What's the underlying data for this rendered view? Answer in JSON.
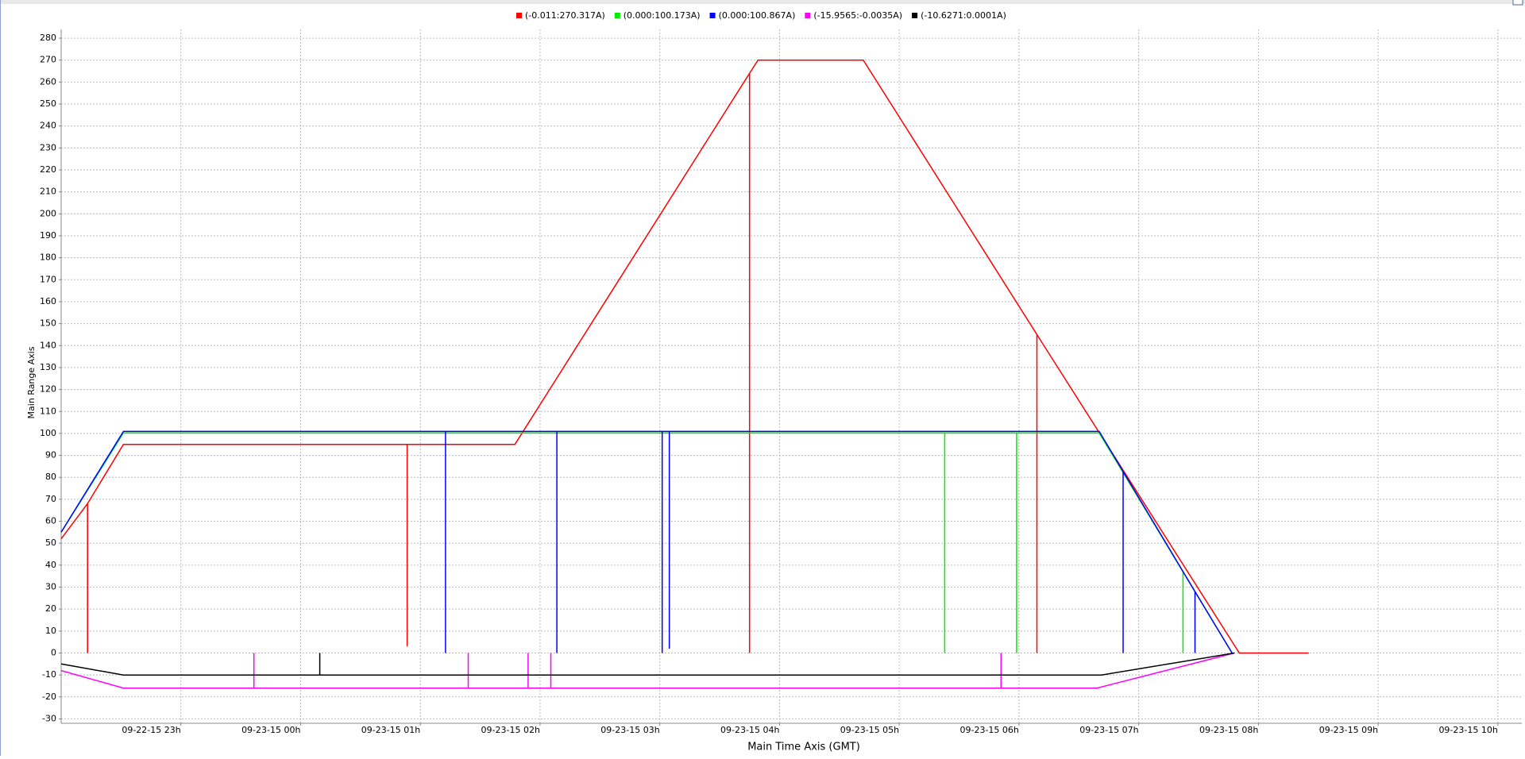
{
  "chart_data": {
    "type": "line",
    "y_label": "Main Range Axis",
    "x_label": "Main Time Axis (GMT)",
    "xlim": [
      22,
      34.2
    ],
    "xticks": [
      {
        "value": 23,
        "label": "09-22-15 23h"
      },
      {
        "value": 24,
        "label": "09-23-15 00h"
      },
      {
        "value": 25,
        "label": "09-23-15 01h"
      },
      {
        "value": 26,
        "label": "09-23-15 02h"
      },
      {
        "value": 27,
        "label": "09-23-15 03h"
      },
      {
        "value": 28,
        "label": "09-23-15 04h"
      },
      {
        "value": 29,
        "label": "09-23-15 05h"
      },
      {
        "value": 30,
        "label": "09-23-15 06h"
      },
      {
        "value": 31,
        "label": "09-23-15 07h"
      },
      {
        "value": 32,
        "label": "09-23-15 08h"
      },
      {
        "value": 33,
        "label": "09-23-15 09h"
      },
      {
        "value": 34,
        "label": "09-23-15 10h"
      }
    ],
    "ylim": [
      -32,
      284
    ],
    "yticks": [
      -30,
      -20,
      -10,
      0,
      10,
      20,
      30,
      40,
      50,
      60,
      70,
      80,
      90,
      100,
      110,
      120,
      130,
      140,
      150,
      160,
      170,
      180,
      190,
      200,
      210,
      220,
      230,
      240,
      250,
      260,
      270,
      280
    ],
    "grid": true,
    "legend": "top",
    "series": [
      {
        "name": "(-0.011:270.317A)",
        "color": "#ff0000",
        "x": [
          22.0,
          22.22,
          22.22,
          22.22,
          22.52,
          24.89,
          24.89,
          24.89,
          25.79,
          27.75,
          27.75,
          27.75,
          27.82,
          28.7,
          30.15,
          30.15,
          30.15,
          31.84,
          32.42
        ],
        "values": [
          52,
          68,
          0,
          68,
          95,
          95,
          3,
          95,
          95,
          264,
          0,
          264,
          270,
          270,
          145,
          0,
          145,
          0,
          0
        ]
      },
      {
        "name": "(0.000:100.173A)",
        "color": "#00ee00",
        "x": [
          22.0,
          22.52,
          29.38,
          29.38,
          29.38,
          29.98,
          29.98,
          29.98,
          30.67,
          31.37,
          31.37,
          31.37,
          31.78
        ],
        "values": [
          55,
          100.2,
          100.2,
          0,
          100.2,
          100.2,
          0,
          100.2,
          100.2,
          37,
          0,
          37,
          0
        ]
      },
      {
        "name": "(0.000:100.867A)",
        "color": "#0000ff",
        "x": [
          22.0,
          22.52,
          25.21,
          25.21,
          25.21,
          26.14,
          26.14,
          26.14,
          27.02,
          27.02,
          27.02,
          27.08,
          27.08,
          27.08,
          30.67,
          30.87,
          30.87,
          30.87,
          31.47,
          31.47,
          31.47,
          31.78
        ],
        "values": [
          55,
          100.9,
          100.9,
          0,
          100.9,
          100.9,
          0,
          100.9,
          100.9,
          0,
          100.9,
          100.9,
          2,
          100.9,
          100.9,
          82.7,
          0,
          82.7,
          28,
          0,
          28,
          0
        ]
      },
      {
        "name": "(-15.9565:-0.0035A)",
        "color": "#ff00ff",
        "x": [
          22.0,
          22.52,
          23.61,
          23.61,
          23.61,
          25.4,
          25.4,
          25.4,
          25.9,
          25.9,
          25.9,
          26.09,
          26.09,
          26.09,
          29.85,
          29.85,
          29.85,
          30.65,
          31.8
        ],
        "values": [
          -8,
          -16,
          -16,
          0,
          -16,
          -16,
          0,
          -16,
          -16,
          0,
          -16,
          -16,
          0,
          -16,
          -16,
          0,
          -16,
          -16,
          0
        ]
      },
      {
        "name": "(-10.6271:0.0001A)",
        "color": "#000000",
        "x": [
          22.0,
          22.52,
          24.16,
          24.16,
          24.16,
          30.69,
          31.8
        ],
        "values": [
          -5,
          -10,
          -10,
          0,
          -10,
          -10,
          0
        ]
      }
    ]
  }
}
